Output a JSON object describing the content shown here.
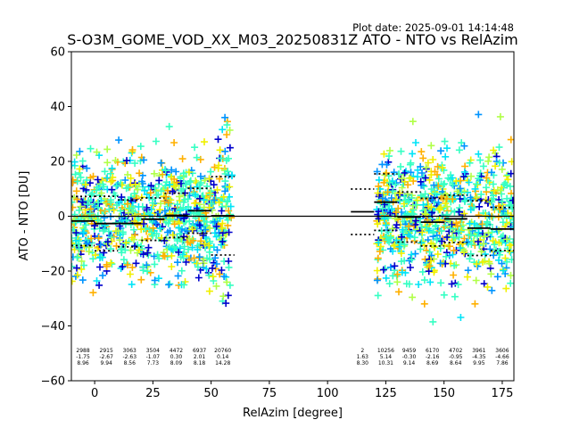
{
  "chart_data": {
    "type": "scatter",
    "plot_date": "Plot date: 2025-09-01 14:14:48",
    "title": "S-O3M_GOME_VOD_XX_M03_20250831Z ATO - NTO vs RelAzim",
    "xlabel": "RelAzim [degree]",
    "ylabel": "ATO - NTO [DU]",
    "xlim": [
      -10,
      180
    ],
    "ylim": [
      -60,
      60
    ],
    "x_ticks": [
      0,
      25,
      50,
      75,
      100,
      125,
      150,
      175
    ],
    "y_ticks": [
      -60,
      -40,
      -20,
      0,
      20,
      40,
      60
    ],
    "grid": false,
    "zero_line": 0,
    "colors": {
      "aqua": "#36ffc3",
      "cyan": "#00e4f8",
      "blue": "#0094ff",
      "darkblue": "#0000cd",
      "lime": "#b0ff47",
      "yellow": "#f0f000",
      "orange": "#ffb000"
    },
    "clusters": [
      {
        "x": [
          -10,
          59
        ],
        "y": [
          -32,
          32
        ]
      },
      {
        "x": [
          121,
          180
        ],
        "y": [
          -35,
          35
        ]
      }
    ],
    "bins": [
      {
        "x": -5,
        "count": "2988",
        "mean": "-1.75",
        "std": "8.96",
        "mean_v": -1.75,
        "std_v": 8.96
      },
      {
        "x": 5,
        "count": "2915",
        "mean": "-2.67",
        "std": "9.94",
        "mean_v": -2.67,
        "std_v": 9.94
      },
      {
        "x": 15,
        "count": "3063",
        "mean": "-2.63",
        "std": "8.56",
        "mean_v": -2.63,
        "std_v": 8.56
      },
      {
        "x": 25,
        "count": "3504",
        "mean": "-1.07",
        "std": "7.73",
        "mean_v": -1.07,
        "std_v": 7.73
      },
      {
        "x": 35,
        "count": "4472",
        "mean": "0.30",
        "std": "8.09",
        "mean_v": 0.3,
        "std_v": 8.09
      },
      {
        "x": 45,
        "count": "6937",
        "mean": "2.01",
        "std": "8.18",
        "mean_v": 2.01,
        "std_v": 8.18
      },
      {
        "x": 55,
        "count": "20760",
        "mean": "0.14",
        "std": "14.28",
        "mean_v": 0.14,
        "std_v": 14.28
      },
      {
        "x": 115,
        "count": "2",
        "mean": "1.63",
        "std": "8.30",
        "mean_v": 1.63,
        "std_v": 8.3
      },
      {
        "x": 125,
        "count": "10256",
        "mean": "5.14",
        "std": "10.31",
        "mean_v": 5.14,
        "std_v": 10.31
      },
      {
        "x": 135,
        "count": "9459",
        "mean": "-0.30",
        "std": "9.14",
        "mean_v": -0.3,
        "std_v": 9.14
      },
      {
        "x": 145,
        "count": "6170",
        "mean": "-2.16",
        "std": "8.69",
        "mean_v": -2.16,
        "std_v": 8.69
      },
      {
        "x": 155,
        "count": "4702",
        "mean": "-0.95",
        "std": "8.64",
        "mean_v": -0.95,
        "std_v": 8.64
      },
      {
        "x": 165,
        "count": "3961",
        "mean": "-4.35",
        "std": "9.95",
        "mean_v": -4.35,
        "std_v": 9.95
      },
      {
        "x": 175,
        "count": "3606",
        "mean": "-4.66",
        "std": "7.86",
        "mean_v": -4.66,
        "std_v": 7.86
      }
    ]
  }
}
